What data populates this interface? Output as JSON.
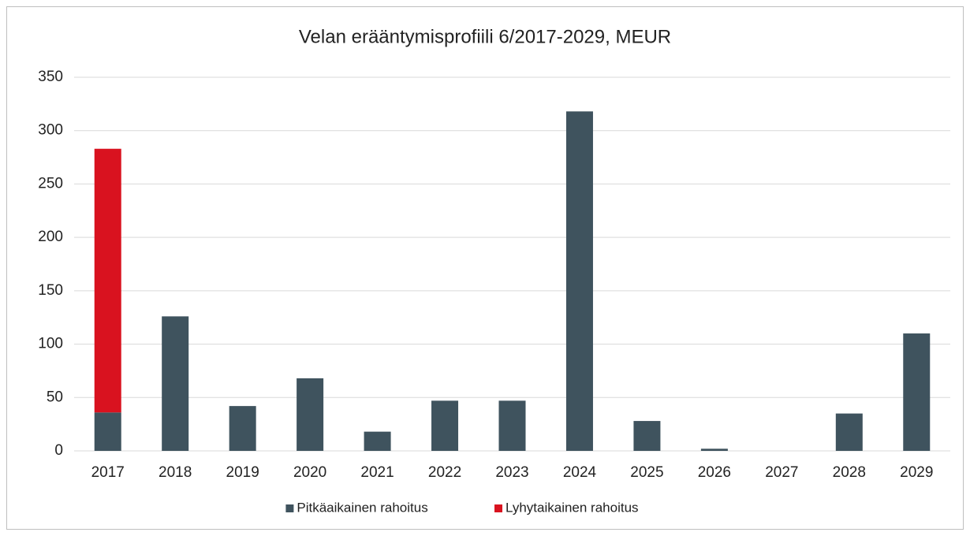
{
  "chart_data": {
    "type": "bar",
    "stacked": true,
    "title": "Velan erääntymisprofiili 6/2017-2029, MEUR",
    "categories": [
      "2017",
      "2018",
      "2019",
      "2020",
      "2021",
      "2022",
      "2023",
      "2024",
      "2025",
      "2026",
      "2027",
      "2028",
      "2029"
    ],
    "series": [
      {
        "name": "Pitkäaikainen rahoitus",
        "color": "#3f535e",
        "values": [
          36,
          126,
          42,
          68,
          18,
          47,
          47,
          318,
          28,
          2,
          0,
          35,
          110
        ]
      },
      {
        "name": "Lyhytaikainen rahoitus",
        "color": "#d9121f",
        "values": [
          247,
          0,
          0,
          0,
          0,
          0,
          0,
          0,
          0,
          0,
          0,
          0,
          0
        ]
      }
    ],
    "ylim": [
      0,
      350
    ],
    "yticks": [
      0,
      50,
      100,
      150,
      200,
      250,
      300,
      350
    ],
    "grid": true,
    "legend": "bottom"
  }
}
